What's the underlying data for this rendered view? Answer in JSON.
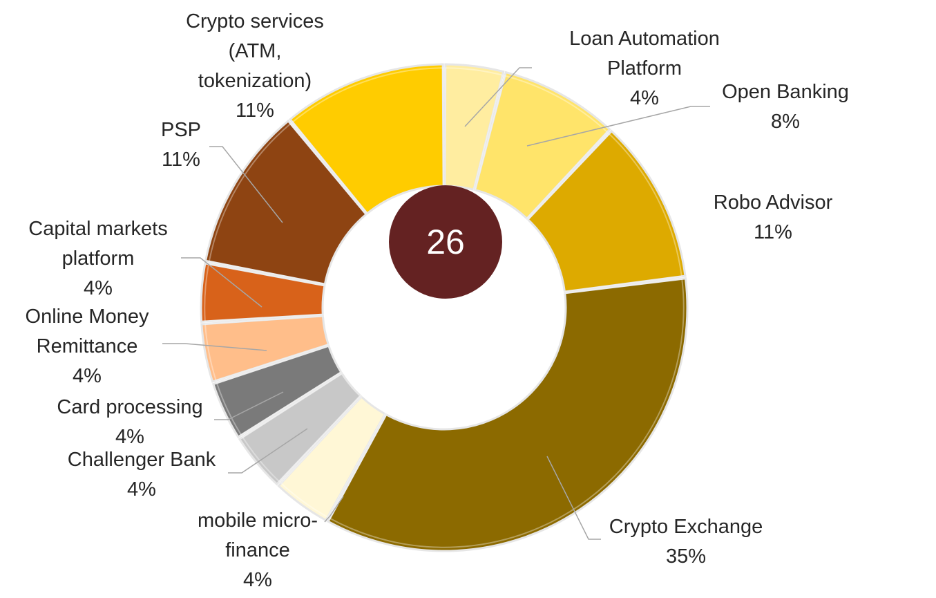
{
  "chart_data": {
    "type": "pie",
    "subtype": "donut",
    "center_label": "26",
    "center_color": "#642222",
    "slices": [
      {
        "name": "Loan Automation Platform",
        "lines": [
          "Loan Automation",
          "Platform"
        ],
        "pct_label": "4%",
        "value": 4,
        "color": "#FFEDA0"
      },
      {
        "name": "Open Banking",
        "lines": [
          "Open Banking"
        ],
        "pct_label": "8%",
        "value": 8,
        "color": "#FFE46A"
      },
      {
        "name": "Robo Advisor",
        "lines": [
          "Robo Advisor"
        ],
        "pct_label": "11%",
        "value": 11,
        "color": "#DDAA00"
      },
      {
        "name": "Crypto Exchange",
        "lines": [
          "Crypto Exchange"
        ],
        "pct_label": "35%",
        "value": 35,
        "color": "#8C6A00"
      },
      {
        "name": "mobile micro-finance",
        "lines": [
          "mobile micro-",
          "finance"
        ],
        "pct_label": "4%",
        "value": 4,
        "color": "#FFF7D6"
      },
      {
        "name": "Challenger Bank",
        "lines": [
          "Challenger Bank"
        ],
        "pct_label": "4%",
        "value": 4,
        "color": "#C8C8C8"
      },
      {
        "name": "Card processing",
        "lines": [
          "Card processing"
        ],
        "pct_label": "4%",
        "value": 4,
        "color": "#7A7A7A"
      },
      {
        "name": "Online Money Remittance",
        "lines": [
          "Online Money",
          "Remittance"
        ],
        "pct_label": "4%",
        "value": 4,
        "color": "#FFBE8A"
      },
      {
        "name": "Capital markets platform",
        "lines": [
          "Capital markets",
          "platform"
        ],
        "pct_label": "4%",
        "value": 4,
        "color": "#D8621A"
      },
      {
        "name": "PSP",
        "lines": [
          "PSP"
        ],
        "pct_label": "11%",
        "value": 11,
        "color": "#8E4412"
      },
      {
        "name": "Crypto services (ATM, tokenization)",
        "lines": [
          "Crypto services",
          "(ATM,",
          "tokenization)"
        ],
        "pct_label": "11%",
        "value": 11,
        "color": "#FFCC00"
      }
    ]
  }
}
